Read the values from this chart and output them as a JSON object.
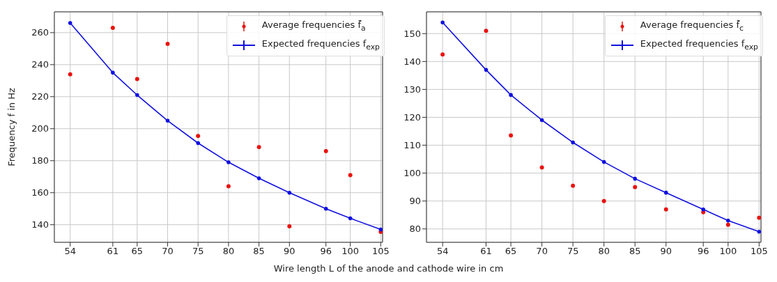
{
  "chart_data": [
    {
      "type": "scatter",
      "ylabel": "Frequency f in Hz",
      "xlabel": "Wire length L of the anode and cathode wire in cm",
      "x": [
        54,
        61,
        65,
        70,
        75,
        80,
        85,
        90,
        96,
        100,
        105
      ],
      "xlim": [
        51.4,
        105.3
      ],
      "xticks": [
        54,
        61,
        65,
        70,
        75,
        80,
        85,
        90,
        96,
        100,
        105
      ],
      "ylim": [
        129,
        273
      ],
      "yticks": [
        140,
        160,
        180,
        200,
        220,
        240,
        260
      ],
      "grid": true,
      "legend": "top right",
      "marker": "circle",
      "series": [
        {
          "name": "Average frequencies f̄$_{a}$",
          "type": "scatter",
          "color": "#e8130f",
          "values": [
            234,
            263,
            231,
            253,
            195.5,
            164,
            188.5,
            139,
            186,
            171,
            135.5
          ]
        },
        {
          "name": "Expected frequencies f$_{exp}$",
          "type": "line",
          "color": "#1010e0",
          "values": [
            266,
            235,
            221,
            205,
            191,
            179,
            169,
            160,
            150,
            144,
            137
          ]
        }
      ]
    },
    {
      "type": "scatter",
      "x": [
        54,
        61,
        65,
        70,
        75,
        80,
        85,
        90,
        96,
        100,
        105
      ],
      "xlim": [
        51.4,
        105.3
      ],
      "xticks": [
        54,
        61,
        65,
        70,
        75,
        80,
        85,
        90,
        96,
        100,
        105
      ],
      "ylim": [
        75.2,
        157.8
      ],
      "yticks": [
        80,
        90,
        100,
        110,
        120,
        130,
        140,
        150
      ],
      "grid": true,
      "legend": "top right",
      "marker": "circle",
      "series": [
        {
          "name": "Average frequencies f̄$_{c}$",
          "type": "scatter",
          "color": "#e8130f",
          "values": [
            142.5,
            151,
            113.5,
            102,
            95.5,
            90,
            95,
            87,
            86,
            81.5,
            84
          ]
        },
        {
          "name": "Expected frequencies f$_{exp}$",
          "type": "line",
          "color": "#1010e0",
          "values": [
            154,
            137,
            128,
            119,
            111,
            104,
            98,
            93,
            87,
            83,
            79
          ]
        }
      ]
    }
  ]
}
